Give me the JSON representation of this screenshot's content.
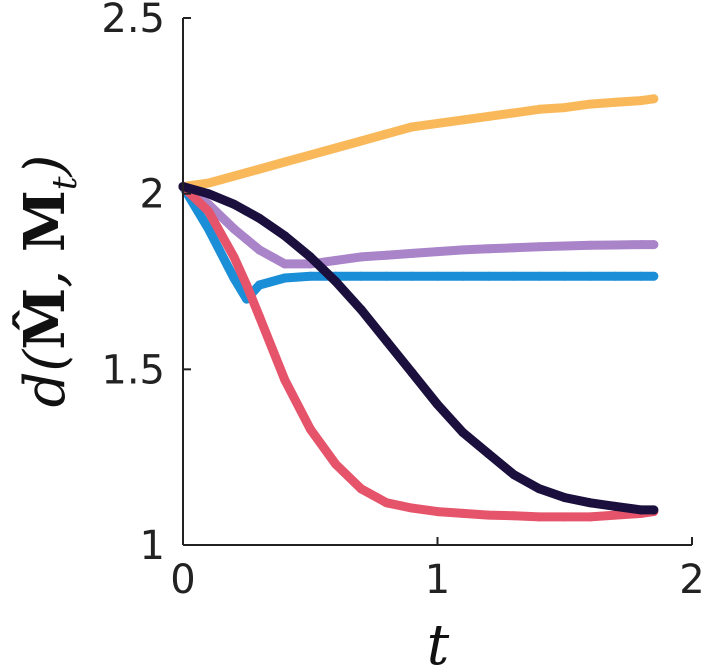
{
  "chart_data": {
    "type": "line",
    "xlabel": "t",
    "ylabel": "d(M̂, M_t)",
    "xlim": [
      0,
      2
    ],
    "ylim": [
      1,
      2.5
    ],
    "xticks": [
      {
        "value": 0,
        "label": "0"
      },
      {
        "value": 1,
        "label": "1"
      },
      {
        "value": 2,
        "label": "2"
      }
    ],
    "yticks": [
      {
        "value": 1,
        "label": "1"
      },
      {
        "value": 1.5,
        "label": "1.5"
      },
      {
        "value": 2,
        "label": "2"
      },
      {
        "value": 2.5,
        "label": "2.5"
      }
    ],
    "grid": false,
    "x": [
      0,
      0.1,
      0.2,
      0.25,
      0.3,
      0.4,
      0.5,
      0.6,
      0.7,
      0.8,
      0.9,
      1.0,
      1.1,
      1.2,
      1.3,
      1.4,
      1.5,
      1.6,
      1.7,
      1.8,
      1.85
    ],
    "series": [
      {
        "color": "#f9b95b",
        "values": [
          2.02,
          2.03,
          2.05,
          2.06,
          2.07,
          2.09,
          2.11,
          2.13,
          2.15,
          2.17,
          2.19,
          2.2,
          2.21,
          2.22,
          2.23,
          2.24,
          2.245,
          2.255,
          2.26,
          2.265,
          2.27
        ]
      },
      {
        "color": "#a984c9",
        "values": [
          2.02,
          1.97,
          1.9,
          1.87,
          1.84,
          1.8,
          1.8,
          1.81,
          1.82,
          1.825,
          1.83,
          1.835,
          1.84,
          1.843,
          1.846,
          1.849,
          1.851,
          1.853,
          1.854,
          1.855,
          1.855
        ]
      },
      {
        "color": "#1a8ed6",
        "values": [
          2.02,
          1.9,
          1.76,
          1.7,
          1.74,
          1.76,
          1.765,
          1.765,
          1.765,
          1.765,
          1.765,
          1.765,
          1.765,
          1.765,
          1.765,
          1.765,
          1.765,
          1.765,
          1.765,
          1.765,
          1.765
        ]
      },
      {
        "color": "#e5546a",
        "values": [
          2.02,
          1.95,
          1.82,
          1.74,
          1.65,
          1.47,
          1.33,
          1.23,
          1.16,
          1.12,
          1.105,
          1.095,
          1.09,
          1.085,
          1.083,
          1.08,
          1.08,
          1.08,
          1.085,
          1.09,
          1.095
        ]
      },
      {
        "color": "#1a0f3d",
        "values": [
          2.02,
          2.0,
          1.97,
          1.95,
          1.93,
          1.88,
          1.82,
          1.75,
          1.67,
          1.58,
          1.49,
          1.4,
          1.32,
          1.26,
          1.2,
          1.16,
          1.135,
          1.12,
          1.11,
          1.1,
          1.1
        ]
      }
    ]
  }
}
